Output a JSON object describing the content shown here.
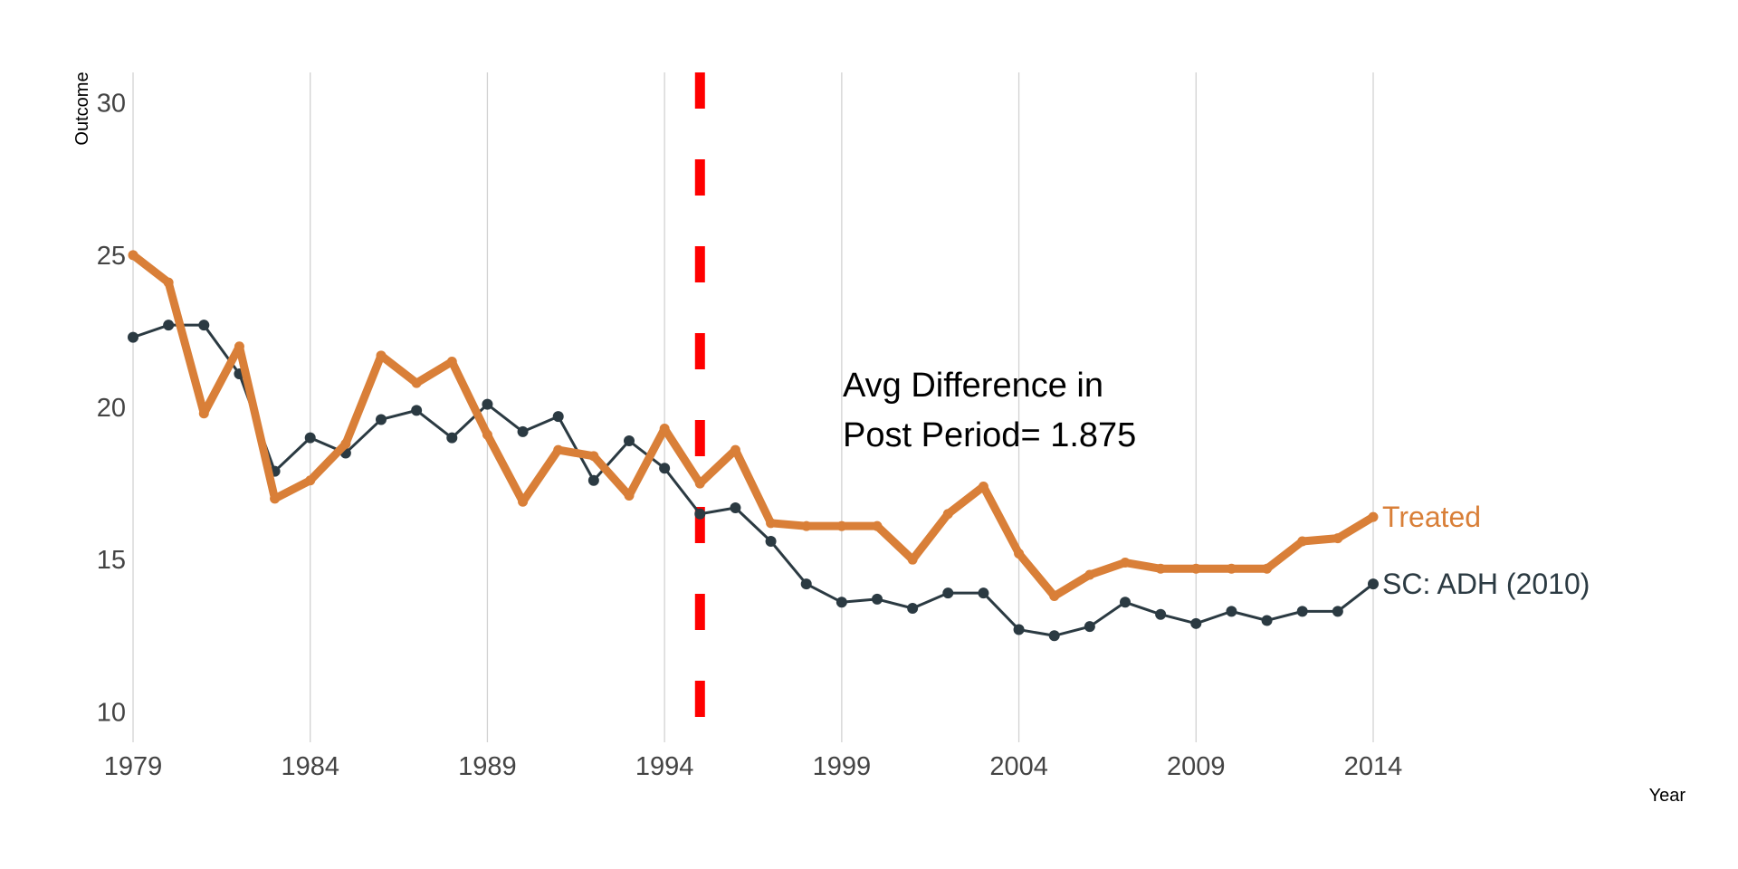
{
  "chart_data": {
    "type": "line",
    "title": "",
    "xlabel": "Year",
    "ylabel": "Outcome",
    "xlim": [
      1979,
      2014
    ],
    "ylim": [
      9,
      31
    ],
    "x_ticks": [
      1979,
      1984,
      1989,
      1994,
      1999,
      2004,
      2009,
      2014
    ],
    "y_ticks": [
      10,
      15,
      20,
      25,
      30
    ],
    "grid": "vertical",
    "treatment_line": {
      "x": 1995,
      "color": "#ff0000",
      "style": "dashed"
    },
    "annotation": [
      "Avg Difference in",
      "Post Period= 1.875"
    ],
    "x": [
      1979,
      1980,
      1981,
      1982,
      1983,
      1984,
      1985,
      1986,
      1987,
      1988,
      1989,
      1990,
      1991,
      1992,
      1993,
      1994,
      1995,
      1996,
      1997,
      1998,
      1999,
      2000,
      2001,
      2002,
      2003,
      2004,
      2005,
      2006,
      2007,
      2008,
      2009,
      2010,
      2011,
      2012,
      2013,
      2014
    ],
    "series": [
      {
        "name": "Treated",
        "color": "#d97f38",
        "values": [
          25.0,
          24.1,
          19.8,
          22.0,
          17.0,
          17.6,
          18.8,
          21.7,
          20.8,
          21.5,
          19.1,
          16.9,
          18.6,
          18.4,
          17.1,
          19.3,
          17.5,
          18.6,
          16.2,
          16.1,
          16.1,
          16.1,
          15.0,
          16.5,
          17.4,
          15.2,
          13.8,
          14.5,
          14.9,
          14.7,
          14.7,
          14.7,
          14.7,
          15.6,
          15.7,
          16.4
        ]
      },
      {
        "name": "SC: ADH (2010)",
        "color": "#2b3a42",
        "values": [
          22.3,
          22.7,
          22.7,
          21.1,
          17.9,
          19.0,
          18.5,
          19.6,
          19.9,
          19.0,
          20.1,
          19.2,
          19.7,
          17.6,
          18.9,
          18.0,
          16.5,
          16.7,
          15.6,
          14.2,
          13.6,
          13.7,
          13.4,
          13.9,
          13.9,
          12.7,
          12.5,
          12.8,
          13.6,
          13.2,
          12.9,
          13.3,
          13.0,
          13.3,
          13.3,
          14.2
        ]
      }
    ]
  }
}
